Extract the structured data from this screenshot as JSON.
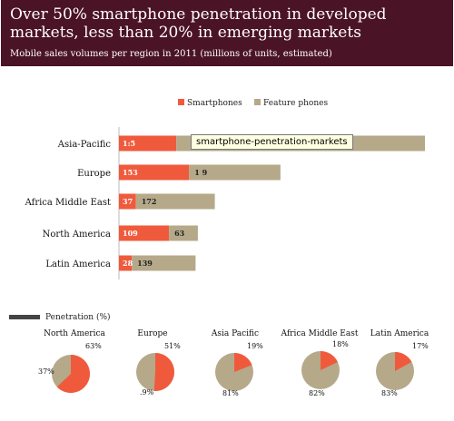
{
  "header": {
    "title": "Over 50% smartphone penetration in developed markets, less than 20% in emerging markets",
    "subtitle": "Mobile sales volumes per region in 2011 (millions of units, estimated)"
  },
  "tooltip": "smartphone-penetration-markets",
  "colors": {
    "smart": "#f05a3c",
    "feature": "#b5a98a",
    "header": "#4b1326",
    "legendPen": "#444444"
  },
  "chart_data": [
    {
      "type": "bar",
      "orientation": "horizontal",
      "stacked": true,
      "categories": [
        "Asia-Pacific",
        "Europe",
        "Africa Middle East",
        "North America",
        "Latin America"
      ],
      "series": [
        {
          "name": "Smartphones",
          "values": [
            125,
            153,
            37,
            109,
            28
          ],
          "labels": [
            "1:5",
            "153",
            "37",
            "109",
            "28"
          ]
        },
        {
          "name": "Feature phones",
          "values": [
            542,
            199,
            172,
            63,
            139
          ],
          "labels": [
            "",
            "1 9",
            "172",
            "63",
            "139"
          ]
        }
      ],
      "legend": "top"
    },
    {
      "type": "pie",
      "title": "Penetration (%)",
      "categories": [
        "North America",
        "Europe",
        "Asia Pacific",
        "Africa Middle East",
        "Latin America"
      ],
      "smartphone_pct": [
        63,
        51,
        19,
        18,
        17
      ],
      "smart_labels": [
        "63%",
        "51%",
        "19%",
        "18%",
        "17%"
      ],
      "feature_labels": [
        "37%",
        ".9%",
        "81%",
        "82%",
        "83%"
      ]
    }
  ]
}
